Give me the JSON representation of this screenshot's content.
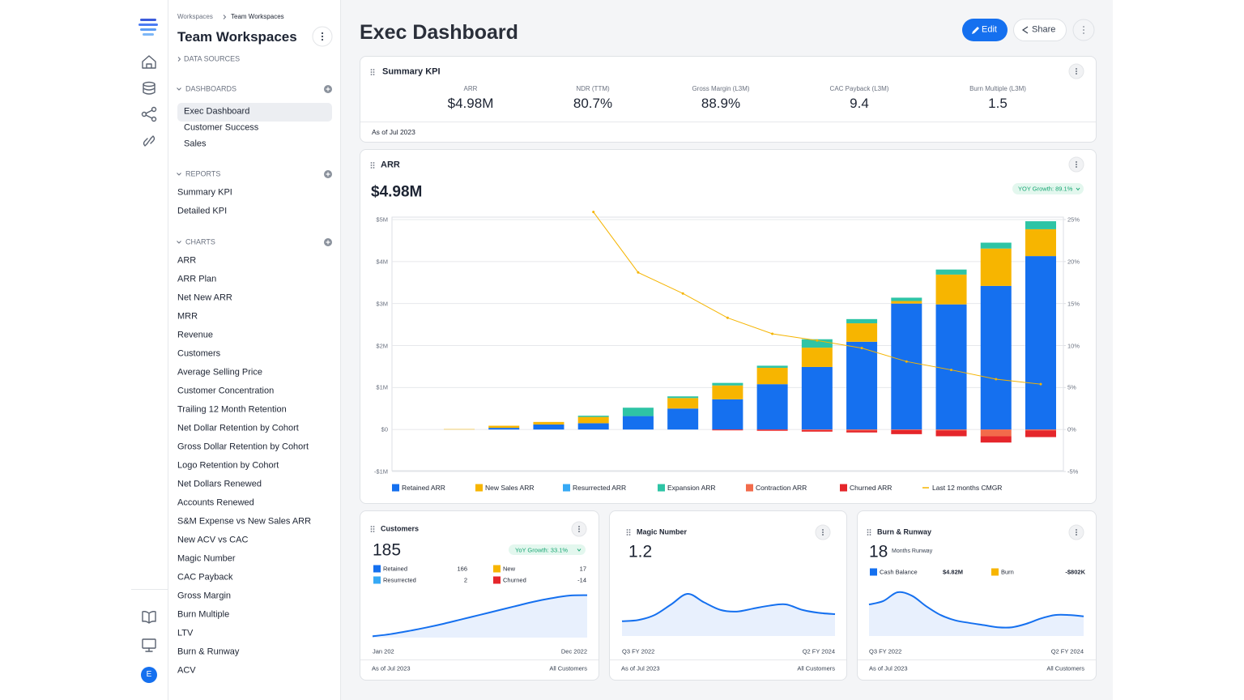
{
  "sidebar": {
    "breadcrumb": [
      "Workspaces",
      "Team Workspaces"
    ],
    "title": "Team Workspaces",
    "data_sources": "DATA SOURCES",
    "sections": [
      {
        "title": "DASHBOARDS",
        "items": [
          "Exec Dashboard",
          "Customer Success",
          "Sales"
        ]
      },
      {
        "title": "REPORTS",
        "items": [
          "Summary KPI",
          "Detailed KPI"
        ]
      },
      {
        "title": "CHARTS",
        "items": [
          "ARR",
          "ARR Plan",
          "Net New ARR",
          "MRR",
          "Revenue",
          "Customers",
          "Average Selling Price",
          "Customer Concentration",
          "Trailing 12 Month Retention",
          "Net Dollar Retention by Cohort",
          "Gross Dollar Retention by Cohort",
          "Logo Retention by Cohort",
          "Net Dollars Renewed",
          "Accounts Renewed",
          "S&M Expense vs New Sales ARR",
          "New ACV vs CAC",
          "Magic Number",
          "CAC Payback",
          "Gross Margin",
          "Burn Multiple",
          "LTV",
          "Burn & Runway",
          "ACV"
        ]
      }
    ],
    "avatar": "E"
  },
  "header": {
    "title": "Exec Dashboard",
    "buttons": [
      "Edit",
      "Share"
    ]
  },
  "summary_kpi": {
    "title": "Summary KPI",
    "items": [
      {
        "label": "ARR",
        "value": "$4.98M"
      },
      {
        "label": "NDR (TTM)",
        "value": "80.7%"
      },
      {
        "label": "Gross Margin (L3M)",
        "value": "88.9%"
      },
      {
        "label": "CAC Payback (L3M)",
        "value": "9.4"
      },
      {
        "label": "Burn Multiple (L3M)",
        "value": "1.5"
      }
    ],
    "footer": "As of Jul 2023"
  },
  "arr": {
    "title": "ARR",
    "headline": "$4.98M",
    "badge": "YOY Growth: 89.1%",
    "chart_data": {
      "type": "bar",
      "stacked": true,
      "categories": [
        null,
        null,
        null,
        null,
        null,
        null,
        null,
        null,
        null,
        null,
        null,
        null,
        null,
        null
      ],
      "series": [
        {
          "name": "Retained ARR",
          "color": "#1570ef",
          "values": [
            0,
            40000,
            120000,
            150000,
            320000,
            500000,
            720000,
            1080000,
            1490000,
            2090000,
            3000000,
            2980000,
            3420000,
            4130000
          ]
        },
        {
          "name": "New Sales ARR",
          "color": "#f7b500",
          "values": [
            10000,
            50000,
            60000,
            150000,
            0,
            250000,
            330000,
            390000,
            460000,
            440000,
            60000,
            710000,
            890000,
            640000
          ]
        },
        {
          "name": "Resurrected ARR",
          "color": "#36a9f5",
          "values": [
            0,
            0,
            0,
            0,
            0,
            0,
            0,
            0,
            0,
            0,
            0,
            0,
            0,
            0
          ]
        },
        {
          "name": "Expansion ARR",
          "color": "#2ec4a5",
          "values": [
            0,
            0,
            0,
            30000,
            200000,
            40000,
            60000,
            50000,
            200000,
            100000,
            80000,
            120000,
            140000,
            190000
          ]
        },
        {
          "name": "Contraction ARR",
          "color": "#f26b4b",
          "values": [
            0,
            0,
            0,
            0,
            0,
            0,
            0,
            0,
            -10000,
            -20000,
            -10000,
            -20000,
            -160000,
            -20000
          ]
        },
        {
          "name": "Churned ARR",
          "color": "#e5262b",
          "values": [
            0,
            0,
            0,
            0,
            0,
            0,
            -20000,
            -30000,
            -40000,
            -50000,
            -100000,
            -140000,
            -150000,
            -160000
          ]
        },
        {
          "name": "Last 12 months CMGR",
          "color": "#f5b400",
          "type": "line",
          "axis": "y2",
          "values": [
            null,
            null,
            null,
            25.9,
            18.7,
            16.2,
            13.3,
            11.4,
            10.6,
            9.7,
            8.1,
            7.1,
            6.0,
            5.4
          ]
        }
      ],
      "ylim": [
        -1000000,
        5000000
      ],
      "yticks": [
        {
          "value": -1000000,
          "label": "-$1M"
        },
        {
          "value": 0,
          "label": "$0"
        },
        {
          "value": 1000000,
          "label": "$1M"
        },
        {
          "value": 2000000,
          "label": "$2M"
        },
        {
          "value": 3000000,
          "label": "$3M"
        },
        {
          "value": 4000000,
          "label": "$4M"
        },
        {
          "value": 5000000,
          "label": "$5M"
        }
      ],
      "y2lim": [
        -5,
        25
      ],
      "y2ticks": [
        {
          "value": -5,
          "label": "-5%"
        },
        {
          "value": 0,
          "label": "0%"
        },
        {
          "value": 5,
          "label": "5%"
        },
        {
          "value": 10,
          "label": "10%"
        },
        {
          "value": 15,
          "label": "15%"
        },
        {
          "value": 20,
          "label": "20%"
        },
        {
          "value": 25,
          "label": "25%"
        }
      ],
      "grid": true,
      "legend": "bottom"
    }
  },
  "customers": {
    "title": "Customers",
    "headline": 185,
    "badge": "YoY Growth: 33.1%",
    "legend": [
      {
        "name": "Retained",
        "color": "#1570ef",
        "value": 166
      },
      {
        "name": "New",
        "color": "#f7b500",
        "value": 17
      },
      {
        "name": "Resurrected",
        "color": "#36a9f5",
        "value": 2
      },
      {
        "name": "Churned",
        "color": "#e5262b",
        "value": -14
      }
    ],
    "chart_data": {
      "type": "area",
      "color": "#1570ef",
      "values": [
        3,
        8,
        15,
        23,
        32,
        42,
        52,
        62,
        72,
        82,
        90,
        96,
        97
      ],
      "ylim": [
        0,
        100
      ],
      "x_labels": [
        "Jan 202",
        "Dec 2022"
      ]
    },
    "footer": [
      "As of Jul 2023",
      "All Customers"
    ]
  },
  "magic_number": {
    "title": "Magic Number",
    "headline": 1.2,
    "chart_data": {
      "type": "area",
      "color": "#1570ef",
      "values": [
        35,
        38,
        50,
        75,
        100,
        80,
        62,
        58,
        65,
        72,
        75,
        62,
        55,
        52
      ],
      "ylim": [
        0,
        100
      ],
      "x_labels": [
        "Q3 FY 2022",
        "Q2 FY 2024"
      ]
    },
    "footer": [
      "As of Jul 2023",
      "All Customers"
    ]
  },
  "burn_runway": {
    "title": "Burn & Runway",
    "headline": 18,
    "headline_unit": "Months Runway",
    "legend": [
      {
        "name": "Cash Balance",
        "color": "#1570ef",
        "value": "$4.82M"
      },
      {
        "name": "Burn",
        "color": "#f7b500",
        "value": "-$802K"
      }
    ],
    "chart_data": {
      "type": "area",
      "color": "#1570ef",
      "values": [
        72,
        80,
        100,
        92,
        68,
        48,
        36,
        30,
        25,
        20,
        20,
        28,
        40,
        48,
        48,
        45
      ],
      "ylim": [
        0,
        100
      ],
      "x_labels": [
        "Q3 FY 2022",
        "Q2 FY 2024"
      ]
    },
    "footer": [
      "As of Jul 2023",
      "All Customers"
    ]
  }
}
